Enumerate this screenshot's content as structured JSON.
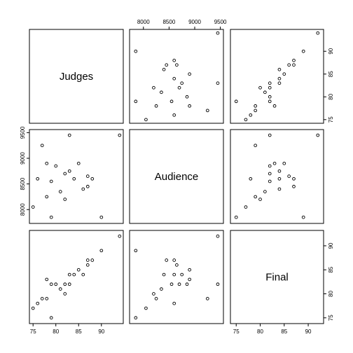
{
  "chart_data": {
    "type": "scatter",
    "variables": [
      "Judges",
      "Audience",
      "Final"
    ],
    "ranges": {
      "Judges": [
        74.2,
        94.8
      ],
      "Audience": [
        7730,
        9560
      ],
      "Final": [
        73.8,
        93.2
      ]
    },
    "ticks": {
      "Judges": [
        75,
        80,
        85,
        90
      ],
      "Audience": [
        8000,
        8500,
        9000,
        9500
      ],
      "Final": [
        75,
        80,
        85,
        90
      ]
    },
    "points": [
      {
        "Judges": 94,
        "Audience": 9450,
        "Final": 92
      },
      {
        "Judges": 90,
        "Audience": 7850,
        "Final": 89
      },
      {
        "Judges": 88,
        "Audience": 8600,
        "Final": 87
      },
      {
        "Judges": 87,
        "Audience": 8450,
        "Final": 87
      },
      {
        "Judges": 87,
        "Audience": 8650,
        "Final": 86
      },
      {
        "Judges": 86,
        "Audience": 8400,
        "Final": 84
      },
      {
        "Judges": 85,
        "Audience": 8900,
        "Final": 85
      },
      {
        "Judges": 84,
        "Audience": 8600,
        "Final": 84
      },
      {
        "Judges": 83,
        "Audience": 8750,
        "Final": 84
      },
      {
        "Judges": 83,
        "Audience": 9450,
        "Final": 82
      },
      {
        "Judges": 82,
        "Audience": 8700,
        "Final": 82
      },
      {
        "Judges": 82,
        "Audience": 8200,
        "Final": 80
      },
      {
        "Judges": 81,
        "Audience": 8350,
        "Final": 81
      },
      {
        "Judges": 80,
        "Audience": 8850,
        "Final": 82
      },
      {
        "Judges": 79,
        "Audience": 8550,
        "Final": 82
      },
      {
        "Judges": 78,
        "Audience": 8900,
        "Final": 83
      },
      {
        "Judges": 78,
        "Audience": 8250,
        "Final": 79
      },
      {
        "Judges": 77,
        "Audience": 9250,
        "Final": 79
      },
      {
        "Judges": 76,
        "Audience": 8600,
        "Final": 78
      },
      {
        "Judges": 75,
        "Audience": 8050,
        "Final": 77
      },
      {
        "Judges": 79,
        "Audience": 7850,
        "Final": 75
      }
    ],
    "grid": false
  }
}
